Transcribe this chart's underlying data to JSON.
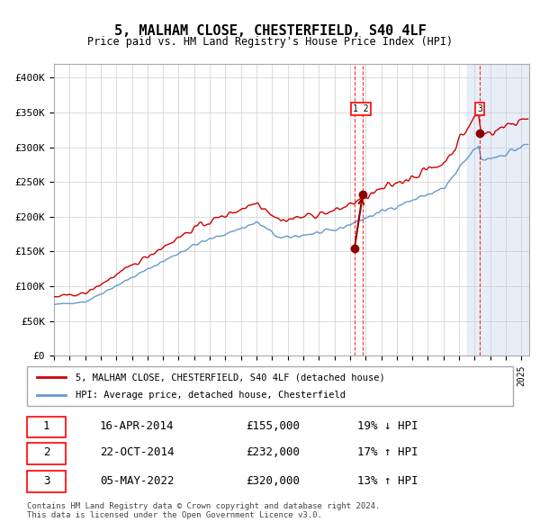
{
  "title": "5, MALHAM CLOSE, CHESTERFIELD, S40 4LF",
  "subtitle": "Price paid vs. HM Land Registry's House Price Index (HPI)",
  "xlabel": "",
  "ylabel": "",
  "ylim": [
    0,
    420000
  ],
  "yticks": [
    0,
    50000,
    100000,
    150000,
    200000,
    250000,
    300000,
    350000,
    400000
  ],
  "ytick_labels": [
    "£0",
    "£50K",
    "£100K",
    "£150K",
    "£200K",
    "£250K",
    "£300K",
    "£350K",
    "£400K"
  ],
  "hpi_color": "#6699cc",
  "price_color": "#cc0000",
  "bg_color": "#f0f4ff",
  "plot_bg": "#ffffff",
  "grid_color": "#cccccc",
  "transactions": [
    {
      "date": 2014.29,
      "price": 155000,
      "label": "1"
    },
    {
      "date": 2014.81,
      "price": 232000,
      "label": "2"
    },
    {
      "date": 2022.34,
      "price": 320000,
      "label": "3"
    }
  ],
  "transaction_details": [
    {
      "num": 1,
      "date": "16-APR-2014",
      "price": "£155,000",
      "hpi_rel": "19% ↓ HPI"
    },
    {
      "num": 2,
      "date": "22-OCT-2014",
      "price": "£232,000",
      "hpi_rel": "17% ↑ HPI"
    },
    {
      "num": 3,
      "date": "05-MAY-2022",
      "price": "£320,000",
      "hpi_rel": "13% ↑ HPI"
    }
  ],
  "legend_entries": [
    "5, MALHAM CLOSE, CHESTERFIELD, S40 4LF (detached house)",
    "HPI: Average price, detached house, Chesterfield"
  ],
  "footer": "Contains HM Land Registry data © Crown copyright and database right 2024.\nThis data is licensed under the Open Government Licence v3.0.",
  "xmin": 1995,
  "xmax": 2025.5
}
